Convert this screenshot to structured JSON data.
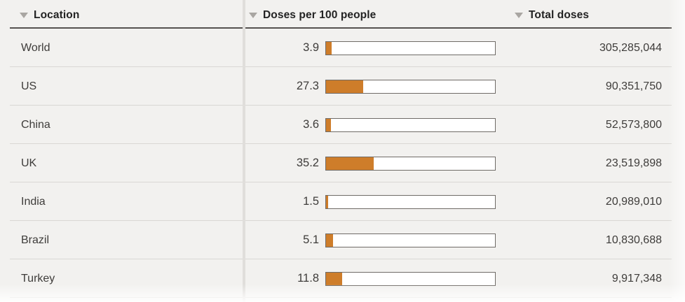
{
  "colors": {
    "background": "#f2f1ef",
    "bar_fill": "#ce7d2a",
    "bar_track": "#ffffff",
    "bar_border": "#6f6b67",
    "header_text": "#232323",
    "body_text": "#3e3c3a",
    "header_underline": "#55524f",
    "row_separator": "#d9d7d4",
    "column_divider": "#e0dedb",
    "sort_icon": "#a9a6a2"
  },
  "header": {
    "columns": [
      {
        "label": "Location",
        "sort_icon": "triangle-down"
      },
      {
        "label": "Doses per 100 people",
        "sort_icon": "triangle-down"
      },
      {
        "label": "Total doses",
        "sort_icon": "triangle-down"
      }
    ]
  },
  "chart_data": {
    "type": "table",
    "title": "",
    "columns": [
      "Location",
      "Doses per 100 people",
      "Total doses"
    ],
    "embedded_bar": {
      "column": "Doses per 100 people",
      "axis_min": 0,
      "axis_max": 125,
      "fill_color": "#ce7d2a"
    },
    "rows": [
      {
        "location": "World",
        "doses_per_100": 3.9,
        "doses_per_100_label": "3.9",
        "total_doses": "305,285,044",
        "total_doses_value": 305285044
      },
      {
        "location": "US",
        "doses_per_100": 27.3,
        "doses_per_100_label": "27.3",
        "total_doses": "90,351,750",
        "total_doses_value": 90351750
      },
      {
        "location": "China",
        "doses_per_100": 3.6,
        "doses_per_100_label": "3.6",
        "total_doses": "52,573,800",
        "total_doses_value": 52573800
      },
      {
        "location": "UK",
        "doses_per_100": 35.2,
        "doses_per_100_label": "35.2",
        "total_doses": "23,519,898",
        "total_doses_value": 23519898
      },
      {
        "location": "India",
        "doses_per_100": 1.5,
        "doses_per_100_label": "1.5",
        "total_doses": "20,989,010",
        "total_doses_value": 20989010
      },
      {
        "location": "Brazil",
        "doses_per_100": 5.1,
        "doses_per_100_label": "5.1",
        "total_doses": "10,830,688",
        "total_doses_value": 10830688
      },
      {
        "location": "Turkey",
        "doses_per_100": 11.8,
        "doses_per_100_label": "11.8",
        "total_doses": "9,917,348",
        "total_doses_value": 9917348
      }
    ]
  }
}
